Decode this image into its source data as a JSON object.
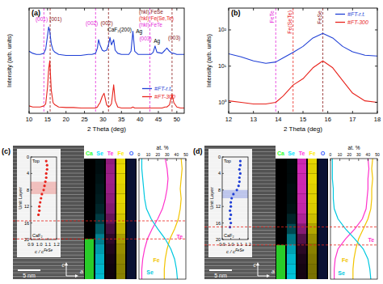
{
  "chart_data": [
    {
      "type": "line",
      "panel_label": "(a)",
      "x_label": "2 Theta (deg)",
      "y_label": "Intensity (arb. units)",
      "x": [
        10,
        11,
        12,
        13,
        14,
        14.5,
        15,
        15.3,
        15.6,
        16,
        16.5,
        17,
        18,
        20,
        22,
        24,
        26,
        27,
        28,
        28.5,
        28.8,
        29.2,
        29.8,
        30.3,
        31,
        31.5,
        31.9,
        32.3,
        32.9,
        33.3,
        34,
        35,
        36,
        37,
        37.6,
        38.1,
        38.6,
        39.5,
        41,
        43,
        43.6,
        44.1,
        44.6,
        46,
        46.8,
        47.3,
        48,
        48.7,
        49.2,
        50,
        51,
        52
      ],
      "series": [
        {
          "name": "#FT-r.t.",
          "color": "#1f3fd6",
          "values": [
            5.9,
            5.7,
            5.6,
            5.6,
            5.7,
            6.1,
            7.4,
            8.2,
            7.8,
            6.6,
            6.0,
            5.8,
            5.6,
            5.5,
            5.5,
            5.5,
            5.6,
            5.6,
            5.7,
            6.2,
            7.0,
            6.5,
            6.0,
            5.9,
            6.0,
            6.5,
            7.2,
            6.5,
            7.0,
            6.0,
            5.7,
            5.6,
            5.6,
            5.6,
            5.9,
            7.8,
            5.9,
            5.6,
            5.6,
            5.6,
            5.8,
            6.4,
            5.8,
            5.7,
            6.0,
            6.2,
            5.9,
            5.7,
            5.7,
            5.6,
            5.6,
            5.6
          ]
        },
        {
          "name": "#FT-300",
          "color": "#e8231c",
          "values": [
            0.7,
            0.6,
            0.6,
            0.6,
            0.7,
            0.9,
            2.5,
            4.2,
            5.0,
            2.2,
            1.0,
            0.8,
            0.6,
            0.55,
            0.55,
            0.5,
            0.5,
            0.5,
            0.5,
            0.6,
            0.8,
            1.0,
            1.6,
            1.9,
            0.8,
            0.6,
            0.7,
            0.9,
            2.7,
            1.2,
            0.6,
            0.5,
            0.5,
            0.5,
            0.5,
            0.6,
            0.5,
            0.5,
            0.5,
            0.5,
            0.5,
            0.5,
            0.5,
            0.5,
            0.6,
            0.6,
            0.8,
            1.8,
            1.0,
            0.6,
            0.5,
            0.5
          ]
        }
      ],
      "xlim": [
        10,
        52
      ],
      "xticks": [
        10,
        15,
        20,
        25,
        30,
        35,
        40,
        45,
        50
      ],
      "ylim": [
        0,
        10
      ],
      "tick_labels": "x",
      "legend": "lower right",
      "phase_legend": [
        {
          "text": "(hkl) FeSe",
          "color": "#8b1a1a"
        },
        {
          "text": "(hkl) Fe(Se,Te)",
          "color": "#e8231c"
        },
        {
          "text": "(hkl) FeTe",
          "color": "#e52ad8"
        }
      ],
      "annotations": [
        {
          "text": "(001)",
          "x": 13.4,
          "y": 8.8,
          "color": "#e52ad8"
        },
        {
          "text": "(001)",
          "x": 17.2,
          "y": 8.8,
          "color": "#8b1a1a"
        },
        {
          "text": "(002)",
          "x": 27.0,
          "y": 8.4,
          "color": "#e52ad8"
        },
        {
          "text": "(002)",
          "x": 31.0,
          "y": 8.4,
          "color": "#8b1a1a"
        },
        {
          "text": "CaF₂(200)",
          "x": 34.5,
          "y": 7.8,
          "color": "#000000"
        },
        {
          "text": "Ag",
          "x": 39.8,
          "y": 7.6,
          "color": "#000000"
        },
        {
          "text": "(003)",
          "x": 41.5,
          "y": 6.9,
          "color": "#e52ad8"
        },
        {
          "text": "Ag",
          "x": 44.6,
          "y": 6.7,
          "color": "#000000"
        },
        {
          "text": "(003)",
          "x": 49.3,
          "y": 7.0,
          "color": "#8b1a1a"
        }
      ],
      "ref_lines": [
        {
          "x": 14.0,
          "color": "#e52ad8"
        },
        {
          "x": 15.7,
          "color": "#8b1a1a"
        },
        {
          "x": 28.0,
          "color": "#e52ad8"
        },
        {
          "x": 31.5,
          "color": "#8b1a1a"
        },
        {
          "x": 42.7,
          "color": "#e52ad8"
        },
        {
          "x": 48.7,
          "color": "#8b1a1a"
        }
      ]
    },
    {
      "type": "line",
      "panel_label": "(b)",
      "x_label": "2 Theta (deg)",
      "y_label": "Intensity (arb. units)",
      "x": [
        12,
        12.5,
        13,
        13.5,
        13.9,
        14.2,
        14.6,
        15,
        15.4,
        15.8,
        16.2,
        16.6,
        17,
        17.5,
        18
      ],
      "series": [
        {
          "name": "#FT-r.t.",
          "color": "#1f3fd6",
          "values": [
            22,
            18,
            14,
            12,
            13,
            17,
            24,
            35,
            60,
            80,
            60,
            35,
            25,
            20,
            19
          ]
        },
        {
          "name": "#FT-300",
          "color": "#e8231c",
          "values": [
            1.1,
            1.0,
            0.9,
            0.9,
            1.0,
            1.5,
            3.0,
            4.5,
            9,
            14,
            9,
            4,
            1.8,
            1.1,
            1.0
          ]
        }
      ],
      "xlim": [
        12,
        18
      ],
      "xticks": [
        12,
        13,
        14,
        15,
        16,
        17,
        18
      ],
      "ylim": [
        0.5,
        400
      ],
      "log": "y",
      "yticks": [
        {
          "value": 1,
          "label": "10⁰"
        },
        {
          "value": 10,
          "label": "10¹"
        },
        {
          "value": 100,
          "label": "10²"
        }
      ],
      "legend": "upper right",
      "annotations": [
        {
          "text": "FeTe",
          "x": 13.9,
          "color": "#e52ad8"
        },
        {
          "text": "Fe(SeTe)",
          "x": 14.6,
          "color": "#e8231c"
        },
        {
          "text": "FeSe",
          "x": 15.8,
          "color": "#8b1a1a"
        }
      ],
      "ref_lines": [
        {
          "x": 13.9,
          "color": "#e52ad8"
        },
        {
          "x": 14.6,
          "color": "#e8231c"
        },
        {
          "x": 15.8,
          "color": "#8b1a1a"
        }
      ]
    },
    {
      "type": "stem_eds",
      "panel_label": "(c)",
      "scale_bar": "5 nm",
      "axis_labels": [
        "c",
        "a"
      ],
      "inset": {
        "type": "scatter",
        "x_label": "c / c",
        "x_label_sup": "FeSe",
        "y_label": "Unit Layer",
        "x": [
          1.08,
          1.09,
          1.09,
          1.08,
          1.08,
          1.07,
          1.06,
          1.05,
          1.03,
          1.02,
          1.01,
          1.0,
          1.0,
          0.99
        ],
        "y": [
          1,
          2,
          3,
          4,
          5,
          6,
          7,
          8,
          9,
          10,
          11,
          12,
          13,
          14
        ],
        "color": "#e8231c",
        "marker": "circle",
        "xlim": [
          0.9,
          1.2
        ],
        "xticks": [
          0.9,
          {
            "value": 1.0,
            "label": "1.0"
          },
          1.1,
          1.2
        ],
        "ylim": [
          0,
          20
        ],
        "yticks": [
          0,
          4,
          8,
          12,
          16,
          20
        ],
        "top_label": "Top",
        "bottom_label": "CaF₂",
        "band": [
          6,
          9
        ]
      },
      "maps": [
        {
          "label": "Ca",
          "color": "#33ff33"
        },
        {
          "label": "Se",
          "color": "#00e5ff"
        },
        {
          "label": "Te",
          "color": "#ff33dd"
        },
        {
          "label": "Fe",
          "color": "#ffee00"
        },
        {
          "label": "O",
          "color": "#3355ff"
        }
      ],
      "profile": {
        "type": "line",
        "x_label": "at. %",
        "depth": [
          0,
          1,
          2,
          3,
          4,
          5,
          6,
          7,
          8,
          9,
          10,
          11,
          12
        ],
        "xlim": [
          0,
          50
        ],
        "xticks": [
          0,
          10,
          20,
          30,
          40,
          50
        ],
        "ylim": [
          0,
          12
        ],
        "interface_depths": [
          6.2,
          8.0
        ],
        "series": [
          {
            "name": "Te",
            "color": "#ff33cc",
            "values": [
              28,
              30,
              31,
              30,
              28,
              25,
              20,
              14,
              9,
              6,
              4,
              3,
              3
            ],
            "label_at": [
              40,
              8
            ]
          },
          {
            "name": "Fe",
            "color": "#f2c400",
            "values": [
              45,
              46,
              45,
              44,
              45,
              44,
              42,
              38,
              33,
              30,
              28,
              27,
              27
            ],
            "label_at": [
              15,
              10.3
            ]
          },
          {
            "name": "Se",
            "color": "#00c8e0",
            "values": [
              3,
              3,
              4,
              5,
              6,
              8,
              13,
              20,
              28,
              34,
              38,
              40,
              41
            ],
            "label_at": [
              8,
              11.5
            ]
          }
        ]
      }
    },
    {
      "type": "stem_eds",
      "panel_label": "(d)",
      "scale_bar": "5 nm",
      "axis_labels": [
        "c",
        "a"
      ],
      "inset": {
        "type": "scatter",
        "x_label": "c / c",
        "x_label_sup": "FeSe",
        "y_label": "Unit Layer",
        "x": [
          1.11,
          1.11,
          1.1,
          1.11,
          1.1,
          1.1,
          1.09,
          1.07,
          1.03,
          1.01,
          1.0,
          1.0,
          0.99,
          1.0,
          0.99,
          1.0,
          0.99
        ],
        "y": [
          1,
          2,
          3,
          4,
          5,
          6,
          7,
          8,
          9,
          10,
          11,
          12,
          13,
          14,
          15,
          16,
          17
        ],
        "color": "#1f3fd6",
        "marker": "circle",
        "xlim": [
          0.9,
          1.2
        ],
        "xticks": [
          0.9,
          {
            "value": 1.0,
            "label": "1.0"
          },
          1.1,
          1.2
        ],
        "ylim": [
          0,
          20
        ],
        "yticks": [
          0,
          4,
          8,
          12,
          16,
          20
        ],
        "top_label": "Top",
        "bottom_label": "CaF₂",
        "band": [
          8,
          10
        ]
      },
      "maps": [
        {
          "label": "Ca",
          "color": "#33ff33"
        },
        {
          "label": "Se",
          "color": "#00e5ff"
        },
        {
          "label": "Te",
          "color": "#ff33dd"
        },
        {
          "label": "Fe",
          "color": "#ffee00"
        },
        {
          "label": "O",
          "color": "#3355ff"
        }
      ],
      "profile": {
        "type": "line",
        "x_label": "at. %",
        "depth": [
          0,
          1,
          2,
          3,
          4,
          5,
          6,
          7,
          8,
          9,
          10,
          11,
          12
        ],
        "xlim": [
          0,
          50
        ],
        "xticks": [
          0,
          10,
          20,
          30,
          40,
          50
        ],
        "ylim": [
          0,
          12
        ],
        "interface_depths": [
          6.8,
          8.6
        ],
        "series": [
          {
            "name": "Te",
            "color": "#ff33cc",
            "values": [
              40,
              41,
              40,
              40,
              39,
              38,
              34,
              26,
              16,
              8,
              5,
              4,
              4
            ],
            "label_at": [
              40,
              8.3
            ]
          },
          {
            "name": "Fe",
            "color": "#f2c400",
            "values": [
              45,
              44,
              45,
              44,
              44,
              43,
              40,
              35,
              30,
              27,
              25,
              24,
              24
            ],
            "label_at": [
              12,
              10.3
            ]
          },
          {
            "name": "Se",
            "color": "#00c8e0",
            "values": [
              2,
              2,
              2,
              3,
              3,
              4,
              8,
              16,
              26,
              35,
              40,
              42,
              43
            ],
            "label_at": [
              8,
              11.6
            ]
          }
        ]
      }
    }
  ]
}
